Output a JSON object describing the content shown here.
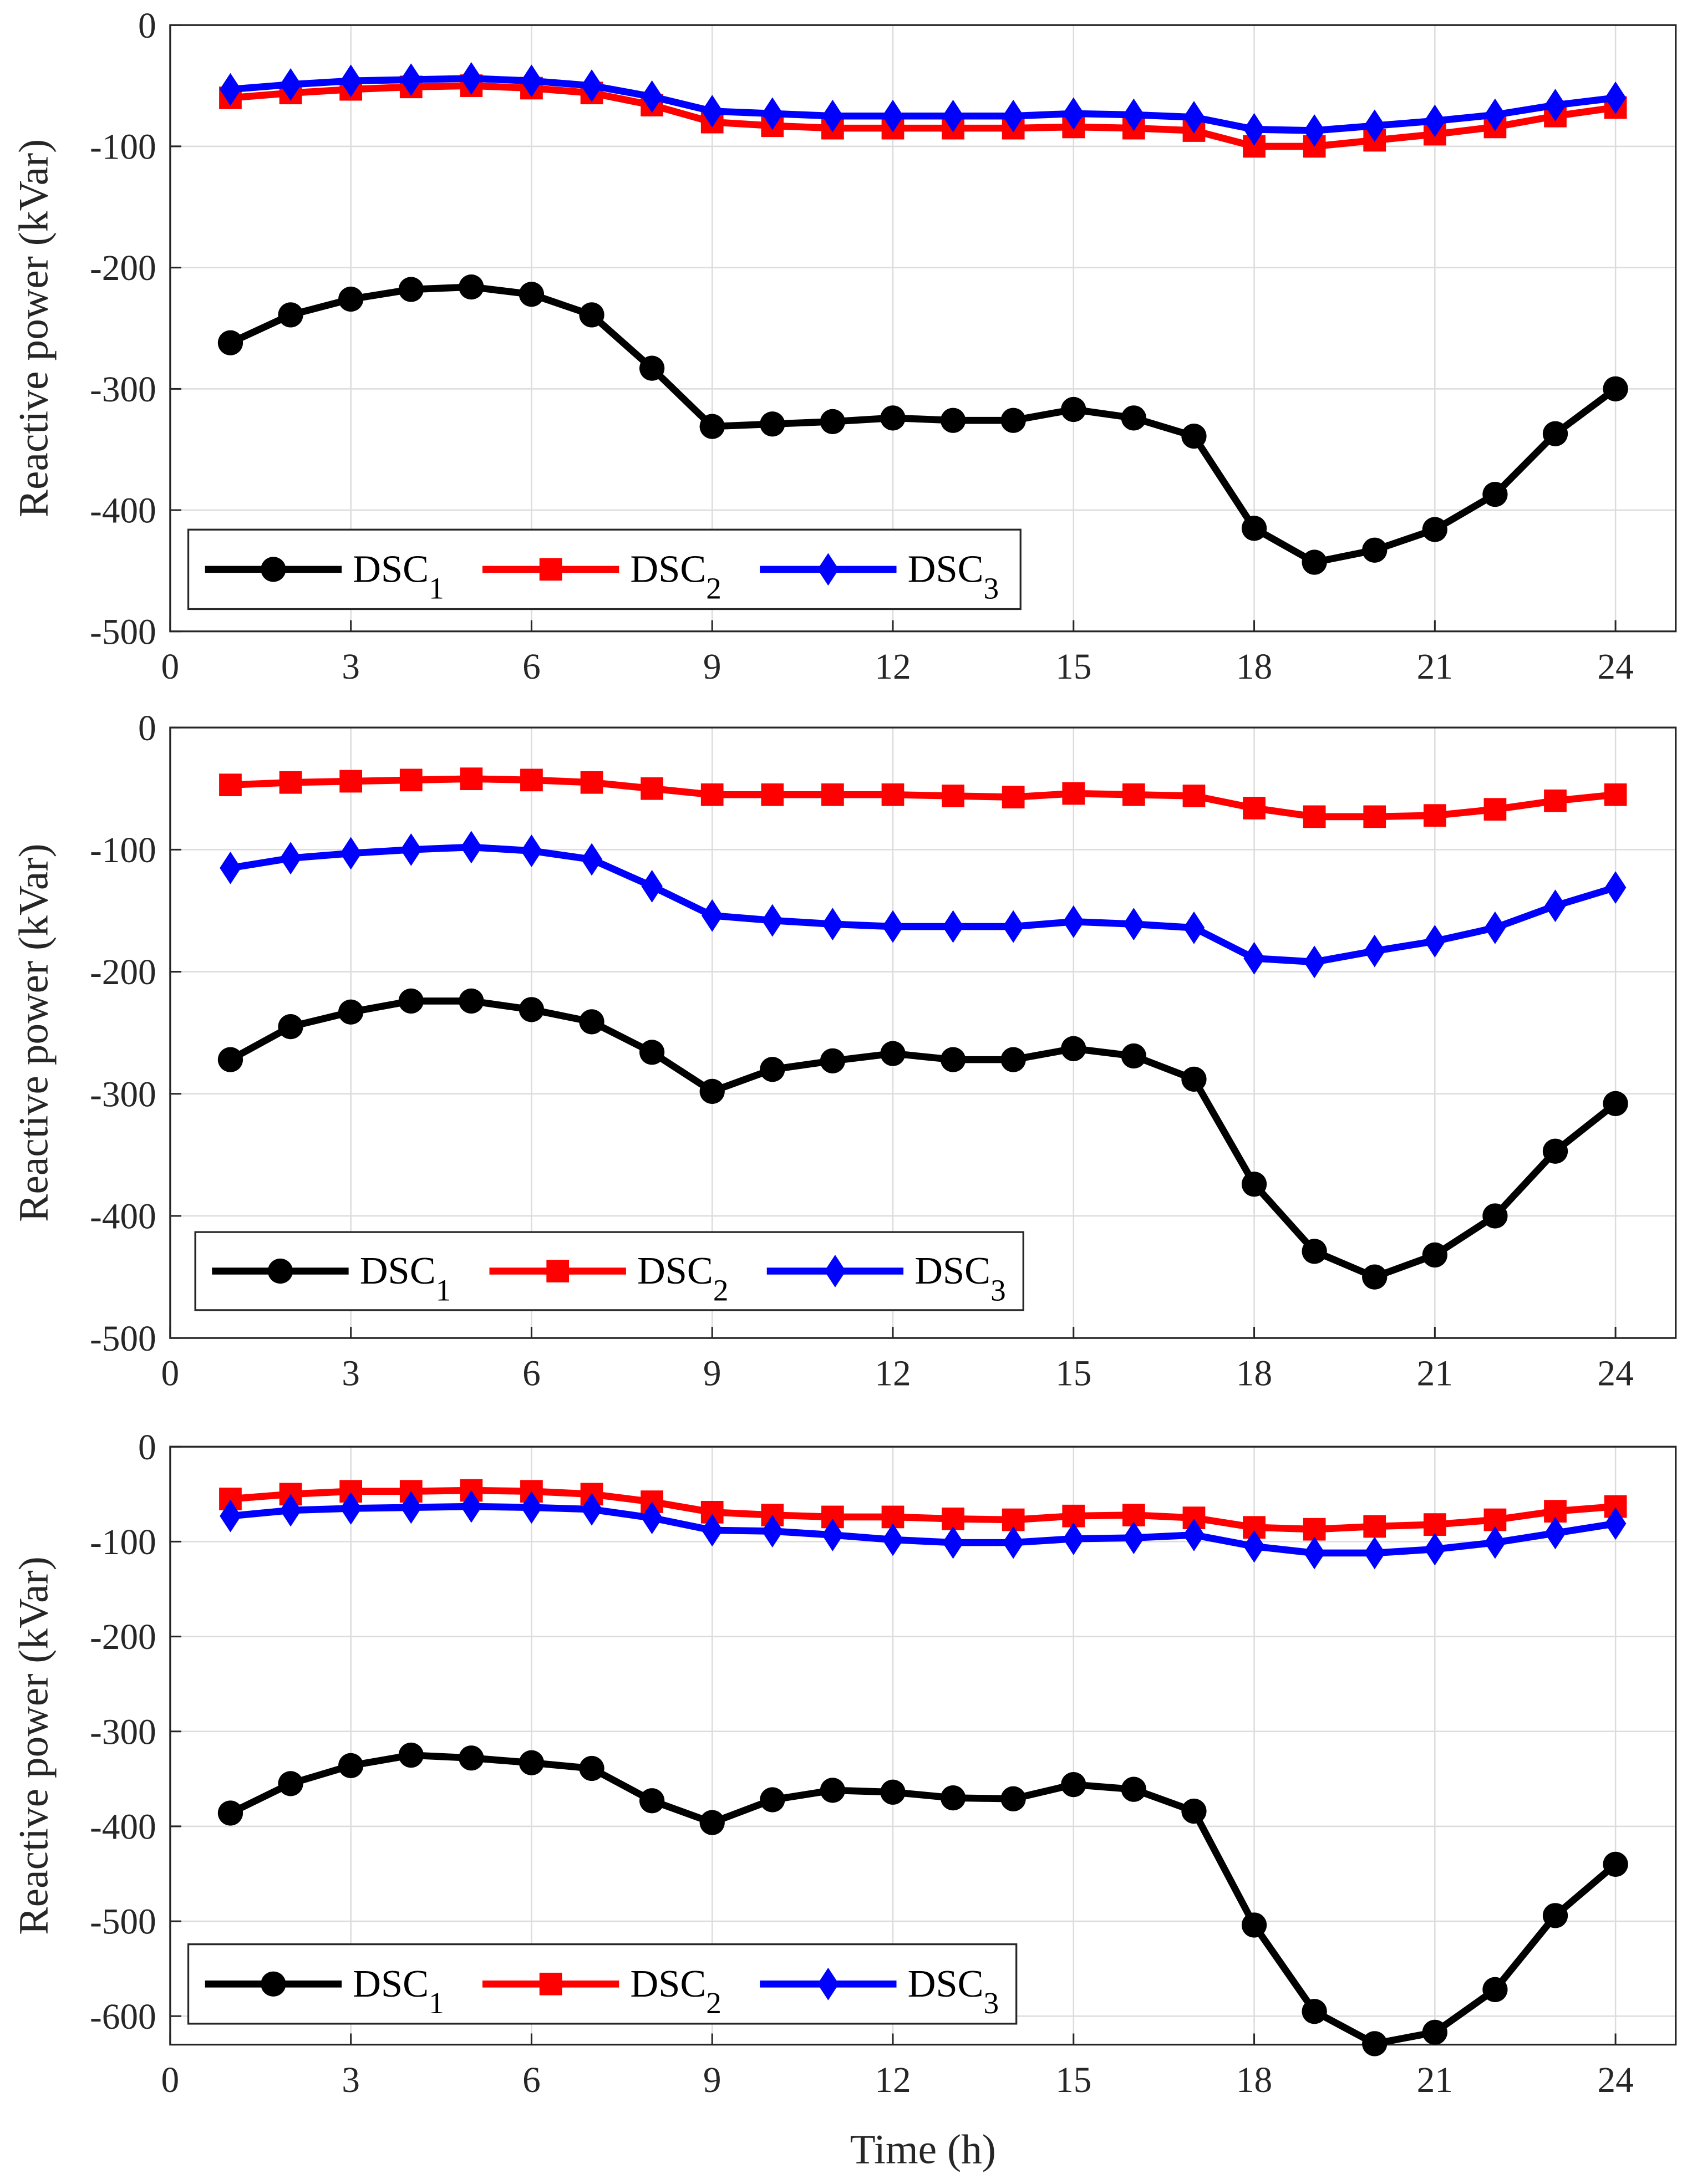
{
  "chart_data": [
    {
      "type": "line",
      "title": "",
      "xlabel": "",
      "ylabel": "Reactive power (kVar)",
      "xlim": [
        0,
        25
      ],
      "ylim": [
        -500,
        0
      ],
      "xticks": [
        0,
        3,
        6,
        9,
        12,
        15,
        18,
        21,
        24
      ],
      "yticks": [
        0,
        -100,
        -200,
        -300,
        -400,
        -500
      ],
      "grid": true,
      "legend": "bottom-left",
      "x": [
        1,
        2,
        3,
        4,
        5,
        6,
        7,
        8,
        9,
        10,
        11,
        12,
        13,
        14,
        15,
        16,
        17,
        18,
        19,
        20,
        21,
        22,
        23,
        24
      ],
      "series": [
        {
          "name": "DSC",
          "sub": "1",
          "color": "#000000",
          "marker": "circle",
          "values": [
            -262,
            -239,
            -226,
            -218,
            -216,
            -222,
            -239,
            -283,
            -331,
            -329,
            -327,
            -324,
            -326,
            -326,
            -317,
            -324,
            -339,
            -415,
            -443,
            -433,
            -416,
            -387,
            -337,
            -300
          ]
        },
        {
          "name": "DSC",
          "sub": "2",
          "color": "#ff0000",
          "marker": "square",
          "values": [
            -60,
            -56,
            -53,
            -51,
            -50,
            -52,
            -56,
            -66,
            -80,
            -83,
            -85,
            -85,
            -85,
            -85,
            -84,
            -85,
            -87,
            -100,
            -100,
            -95,
            -90,
            -84,
            -75,
            -68
          ]
        },
        {
          "name": "DSC",
          "sub": "3",
          "color": "#0000ff",
          "marker": "diamond",
          "values": [
            -53,
            -49,
            -46,
            -45,
            -44,
            -46,
            -50,
            -59,
            -71,
            -73,
            -75,
            -75,
            -75,
            -75,
            -73,
            -74,
            -76,
            -86,
            -87,
            -83,
            -79,
            -74,
            -66,
            -60
          ]
        }
      ]
    },
    {
      "type": "line",
      "title": "",
      "xlabel": "",
      "ylabel": "Reactive power (kVar)",
      "xlim": [
        0,
        25
      ],
      "ylim": [
        -500,
        0
      ],
      "xticks": [
        0,
        3,
        6,
        9,
        12,
        15,
        18,
        21,
        24
      ],
      "yticks": [
        0,
        -100,
        -200,
        -300,
        -400,
        -500
      ],
      "grid": true,
      "legend": "bottom-left",
      "x": [
        1,
        2,
        3,
        4,
        5,
        6,
        7,
        8,
        9,
        10,
        11,
        12,
        13,
        14,
        15,
        16,
        17,
        18,
        19,
        20,
        21,
        22,
        23,
        24
      ],
      "series": [
        {
          "name": "DSC",
          "sub": "1",
          "color": "#000000",
          "marker": "circle",
          "values": [
            -272,
            -245,
            -233,
            -224,
            -224,
            -231,
            -241,
            -266,
            -298,
            -280,
            -273,
            -267,
            -272,
            -272,
            -263,
            -269,
            -288,
            -374,
            -429,
            -450,
            -432,
            -400,
            -347,
            -308
          ]
        },
        {
          "name": "DSC",
          "sub": "2",
          "color": "#ff0000",
          "marker": "square",
          "values": [
            -47,
            -45,
            -44,
            -43,
            -42,
            -43,
            -45,
            -50,
            -55,
            -55,
            -55,
            -55,
            -56,
            -57,
            -54,
            -55,
            -56,
            -66,
            -73,
            -73,
            -72,
            -67,
            -60,
            -55
          ]
        },
        {
          "name": "DSC",
          "sub": "3",
          "color": "#0000ff",
          "marker": "diamond",
          "values": [
            -115,
            -107,
            -103,
            -100,
            -98,
            -101,
            -108,
            -130,
            -154,
            -158,
            -161,
            -163,
            -163,
            -163,
            -159,
            -161,
            -164,
            -189,
            -192,
            -183,
            -175,
            -164,
            -146,
            -131
          ]
        }
      ]
    },
    {
      "type": "line",
      "title": "",
      "xlabel": "Time (h)",
      "ylabel": "Reactive power (kVar)",
      "xlim": [
        0,
        25
      ],
      "ylim": [
        -630,
        0
      ],
      "xticks": [
        0,
        3,
        6,
        9,
        12,
        15,
        18,
        21,
        24
      ],
      "yticks": [
        0,
        -100,
        -200,
        -300,
        -400,
        -500,
        -600
      ],
      "grid": true,
      "legend": "bottom-left",
      "x": [
        1,
        2,
        3,
        4,
        5,
        6,
        7,
        8,
        9,
        10,
        11,
        12,
        13,
        14,
        15,
        16,
        17,
        18,
        19,
        20,
        21,
        22,
        23,
        24
      ],
      "series": [
        {
          "name": "DSC",
          "sub": "1",
          "color": "#000000",
          "marker": "circle",
          "values": [
            -386,
            -355,
            -336,
            -325,
            -328,
            -333,
            -339,
            -373,
            -396,
            -372,
            -362,
            -364,
            -370,
            -371,
            -356,
            -361,
            -384,
            -504,
            -595,
            -629,
            -617,
            -572,
            -494,
            -440
          ]
        },
        {
          "name": "DSC",
          "sub": "2",
          "color": "#ff0000",
          "marker": "square",
          "values": [
            -55,
            -50,
            -47,
            -47,
            -46,
            -47,
            -50,
            -58,
            -69,
            -72,
            -74,
            -74,
            -76,
            -77,
            -73,
            -72,
            -75,
            -85,
            -87,
            -84,
            -82,
            -77,
            -68,
            -63
          ]
        },
        {
          "name": "DSC",
          "sub": "3",
          "color": "#0000ff",
          "marker": "diamond",
          "values": [
            -73,
            -67,
            -65,
            -64,
            -63,
            -64,
            -66,
            -75,
            -88,
            -89,
            -93,
            -98,
            -101,
            -101,
            -97,
            -96,
            -93,
            -105,
            -112,
            -112,
            -108,
            -101,
            -91,
            -81
          ]
        }
      ]
    }
  ]
}
